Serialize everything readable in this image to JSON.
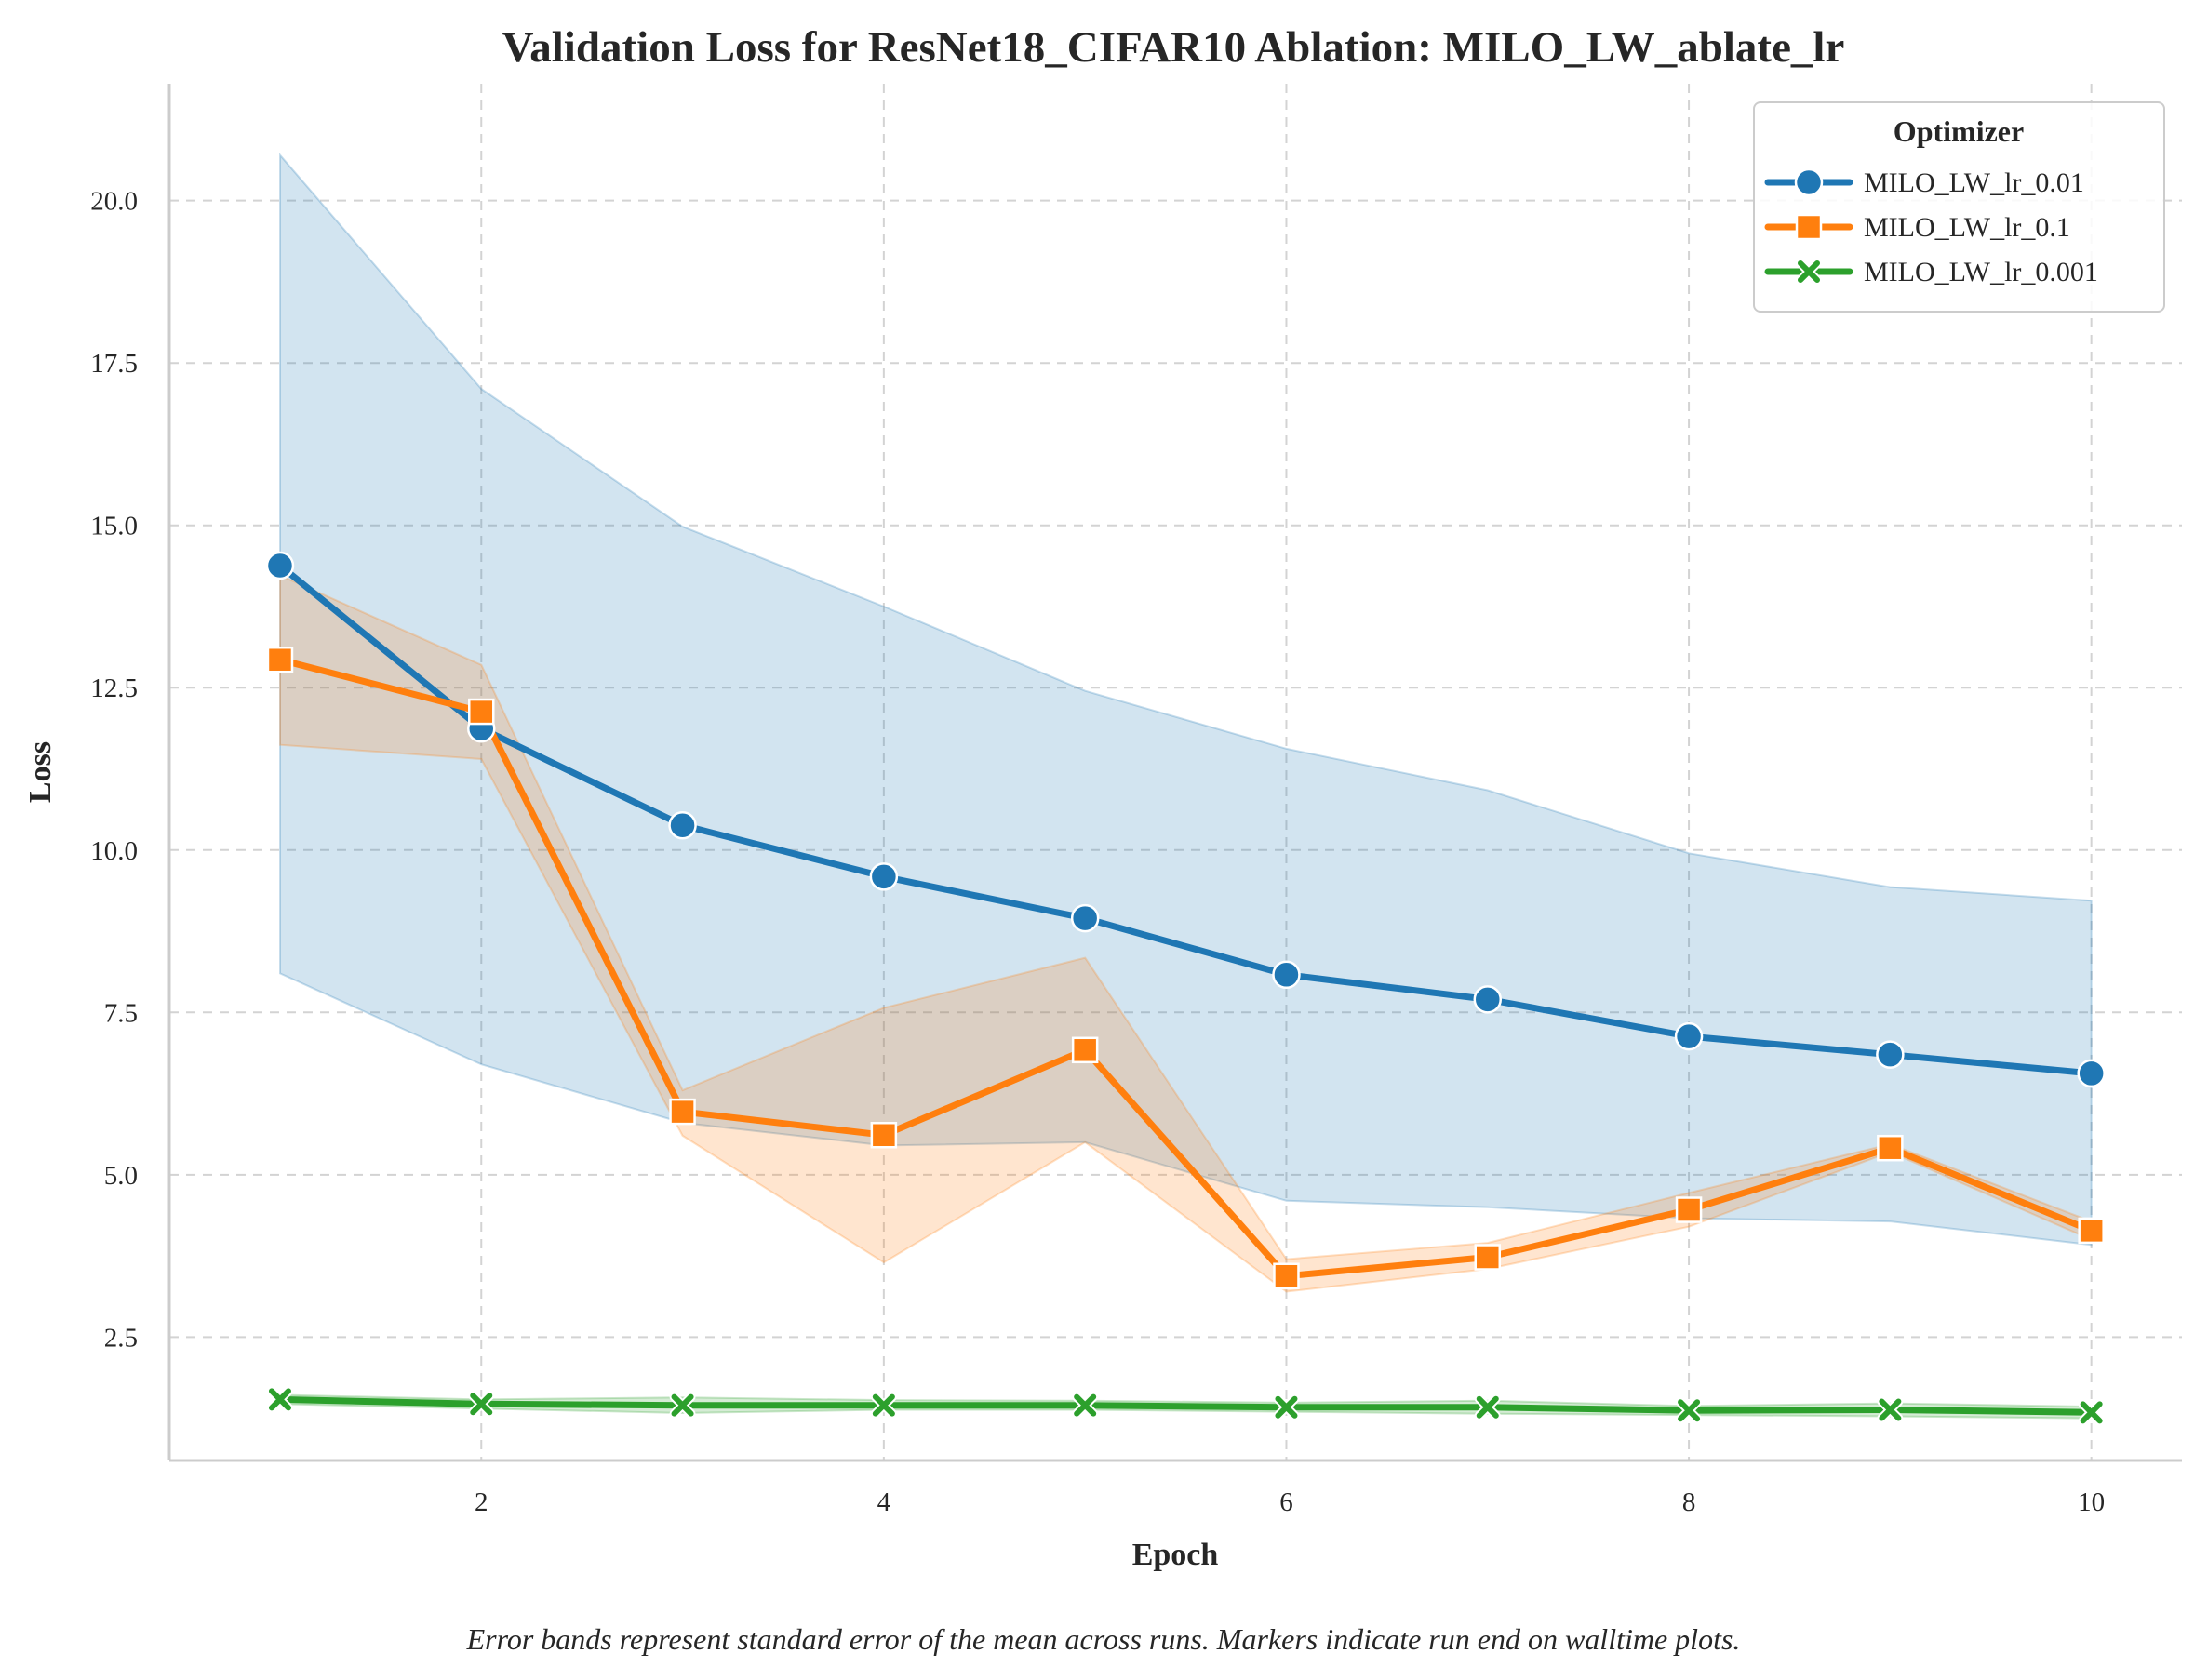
{
  "chart_data": {
    "type": "line",
    "title": "Validation Loss for ResNet18_CIFAR10 Ablation: MILO_LW_ablate_lr",
    "xlabel": "Epoch",
    "ylabel": "Loss",
    "caption": "Error bands represent standard error of the mean across runs. Markers indicate run end on walltime plots.",
    "x": [
      1,
      2,
      3,
      4,
      5,
      6,
      7,
      8,
      9,
      10
    ],
    "xlim": [
      0.45,
      10.45
    ],
    "ylim": [
      0.6,
      21.8
    ],
    "xticks": [
      2,
      4,
      6,
      8,
      10
    ],
    "xtick_labels": [
      "2",
      "4",
      "6",
      "8",
      "10"
    ],
    "yticks": [
      2.5,
      5.0,
      7.5,
      10.0,
      12.5,
      15.0,
      17.5,
      20.0
    ],
    "ytick_labels": [
      "2.5",
      "5.0",
      "7.5",
      "10.0",
      "12.5",
      "15.0",
      "17.5",
      "20.0"
    ],
    "grid": true,
    "legend": {
      "title": "Optimizer",
      "position": "top-right"
    },
    "series": [
      {
        "name": "MILO_LW_lr_0.01",
        "color": "#1f77b4",
        "marker": "circle",
        "values": [
          14.38,
          11.87,
          10.38,
          9.59,
          8.95,
          8.08,
          7.7,
          7.13,
          6.85,
          6.56
        ],
        "lower": [
          8.1,
          6.7,
          5.8,
          5.45,
          5.5,
          4.6,
          4.5,
          4.33,
          4.28,
          3.92
        ],
        "upper": [
          20.7,
          17.1,
          14.98,
          13.75,
          12.45,
          11.56,
          10.92,
          9.95,
          9.43,
          9.22
        ]
      },
      {
        "name": "MILO_LW_lr_0.1",
        "color": "#ff7f0e",
        "marker": "square",
        "values": [
          12.93,
          12.13,
          5.97,
          5.61,
          6.92,
          3.44,
          3.73,
          4.46,
          5.41,
          4.14
        ],
        "lower": [
          11.62,
          11.4,
          5.6,
          3.65,
          5.5,
          3.2,
          3.55,
          4.2,
          5.35,
          4.0
        ],
        "upper": [
          14.23,
          12.85,
          6.3,
          7.57,
          8.34,
          3.7,
          3.95,
          4.72,
          5.47,
          4.28
        ]
      },
      {
        "name": "MILO_LW_lr_0.001",
        "color": "#2ca02c",
        "marker": "x",
        "values": [
          1.54,
          1.47,
          1.45,
          1.45,
          1.45,
          1.42,
          1.42,
          1.37,
          1.38,
          1.34
        ],
        "lower": [
          1.47,
          1.4,
          1.33,
          1.38,
          1.38,
          1.35,
          1.32,
          1.3,
          1.28,
          1.25
        ],
        "upper": [
          1.61,
          1.54,
          1.57,
          1.53,
          1.52,
          1.49,
          1.52,
          1.44,
          1.48,
          1.43
        ]
      }
    ]
  }
}
